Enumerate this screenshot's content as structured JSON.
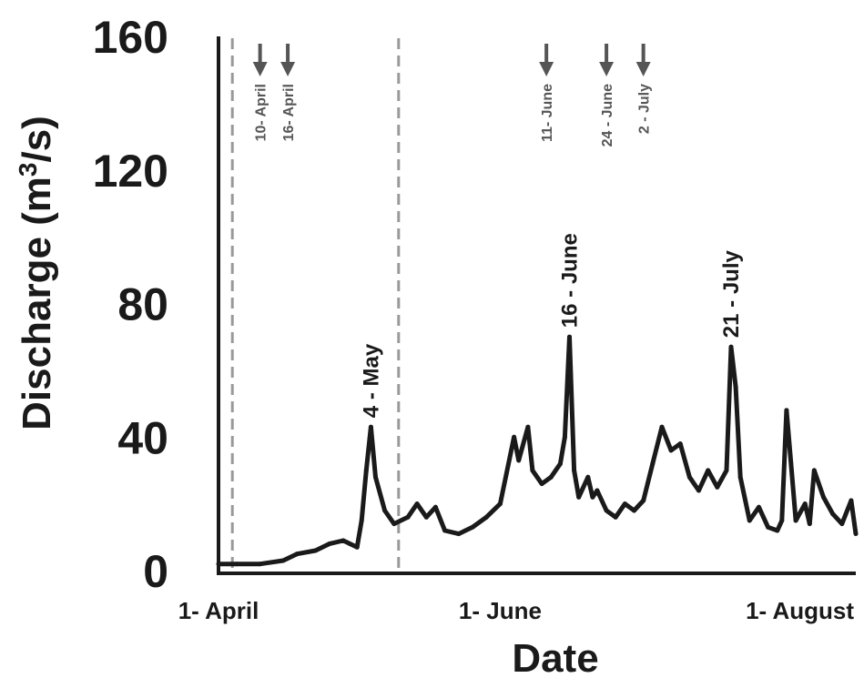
{
  "chart_data": {
    "type": "line",
    "title": "",
    "xlabel": "Date",
    "ylabel": "Discharge (m3/s)",
    "ylabel_parts": {
      "pre": "Discharge (m",
      "sup": "3",
      "post": "/s)"
    },
    "ylim": [
      0,
      160
    ],
    "xlim": [
      "2000-04-01",
      "2000-08-17"
    ],
    "yticks": [
      "0",
      "40",
      "80",
      "120",
      "160"
    ],
    "xticks": [
      {
        "date": "2000-04-01",
        "label": "1- April"
      },
      {
        "date": "2000-06-01",
        "label": "1- June"
      },
      {
        "date": "2000-08-01",
        "label": "1- August"
      }
    ],
    "grid": false,
    "vertical_dashed_lines": [
      "2000-04-04",
      "2000-05-10"
    ],
    "peak_labels": [
      {
        "date": "2000-05-04",
        "value": 43,
        "label": "4 - May"
      },
      {
        "date": "2000-06-16",
        "value": 70,
        "label": "16 - June"
      },
      {
        "date": "2000-07-21",
        "value": 67,
        "label": "21 - July"
      }
    ],
    "arrow_markers": [
      {
        "date": "2000-04-10",
        "label": "10- April"
      },
      {
        "date": "2000-04-16",
        "label": "16- April"
      },
      {
        "date": "2000-06-11",
        "label": "11- June"
      },
      {
        "date": "2000-06-24",
        "label": "24 - June"
      },
      {
        "date": "2000-07-02",
        "label": "2 - July"
      }
    ],
    "colors": {
      "line": "#1a1a1a",
      "dashed": "#999999",
      "arrow": "#555555"
    },
    "series": [
      {
        "x": [
          "2000-04-01",
          "2000-04-05",
          "2000-04-10",
          "2000-04-15",
          "2000-04-18",
          "2000-04-22",
          "2000-04-25",
          "2000-04-28",
          "2000-05-01",
          "2000-05-02",
          "2000-05-03",
          "2000-05-04",
          "2000-05-05",
          "2000-05-07",
          "2000-05-09",
          "2000-05-12",
          "2000-05-14",
          "2000-05-16",
          "2000-05-18",
          "2000-05-20",
          "2000-05-23",
          "2000-05-26",
          "2000-05-29",
          "2000-06-01",
          "2000-06-04",
          "2000-06-05",
          "2000-06-07",
          "2000-06-08",
          "2000-06-10",
          "2000-06-12",
          "2000-06-14",
          "2000-06-15",
          "2000-06-16",
          "2000-06-17",
          "2000-06-18",
          "2000-06-20",
          "2000-06-21",
          "2000-06-22",
          "2000-06-24",
          "2000-06-26",
          "2000-06-28",
          "2000-06-30",
          "2000-07-02",
          "2000-07-04",
          "2000-07-06",
          "2000-07-08",
          "2000-07-10",
          "2000-07-12",
          "2000-07-14",
          "2000-07-16",
          "2000-07-18",
          "2000-07-20",
          "2000-07-21",
          "2000-07-22",
          "2000-07-23",
          "2000-07-25",
          "2000-07-27",
          "2000-07-29",
          "2000-07-31",
          "2000-08-01",
          "2000-08-02",
          "2000-08-04",
          "2000-08-06",
          "2000-08-07",
          "2000-08-08",
          "2000-08-10",
          "2000-08-12",
          "2000-08-14",
          "2000-08-16",
          "2000-08-17"
        ],
        "y": [
          2,
          2,
          2,
          3,
          5,
          6,
          8,
          9,
          7,
          15,
          30,
          43,
          28,
          18,
          14,
          16,
          20,
          16,
          19,
          12,
          11,
          13,
          16,
          20,
          40,
          33,
          43,
          30,
          26,
          28,
          32,
          40,
          70,
          30,
          22,
          28,
          22,
          24,
          18,
          16,
          20,
          18,
          21,
          32,
          43,
          36,
          38,
          28,
          24,
          30,
          25,
          30,
          67,
          55,
          28,
          15,
          19,
          13,
          12,
          15,
          48,
          15,
          20,
          14,
          30,
          22,
          17,
          14,
          21,
          11
        ]
      }
    ]
  }
}
